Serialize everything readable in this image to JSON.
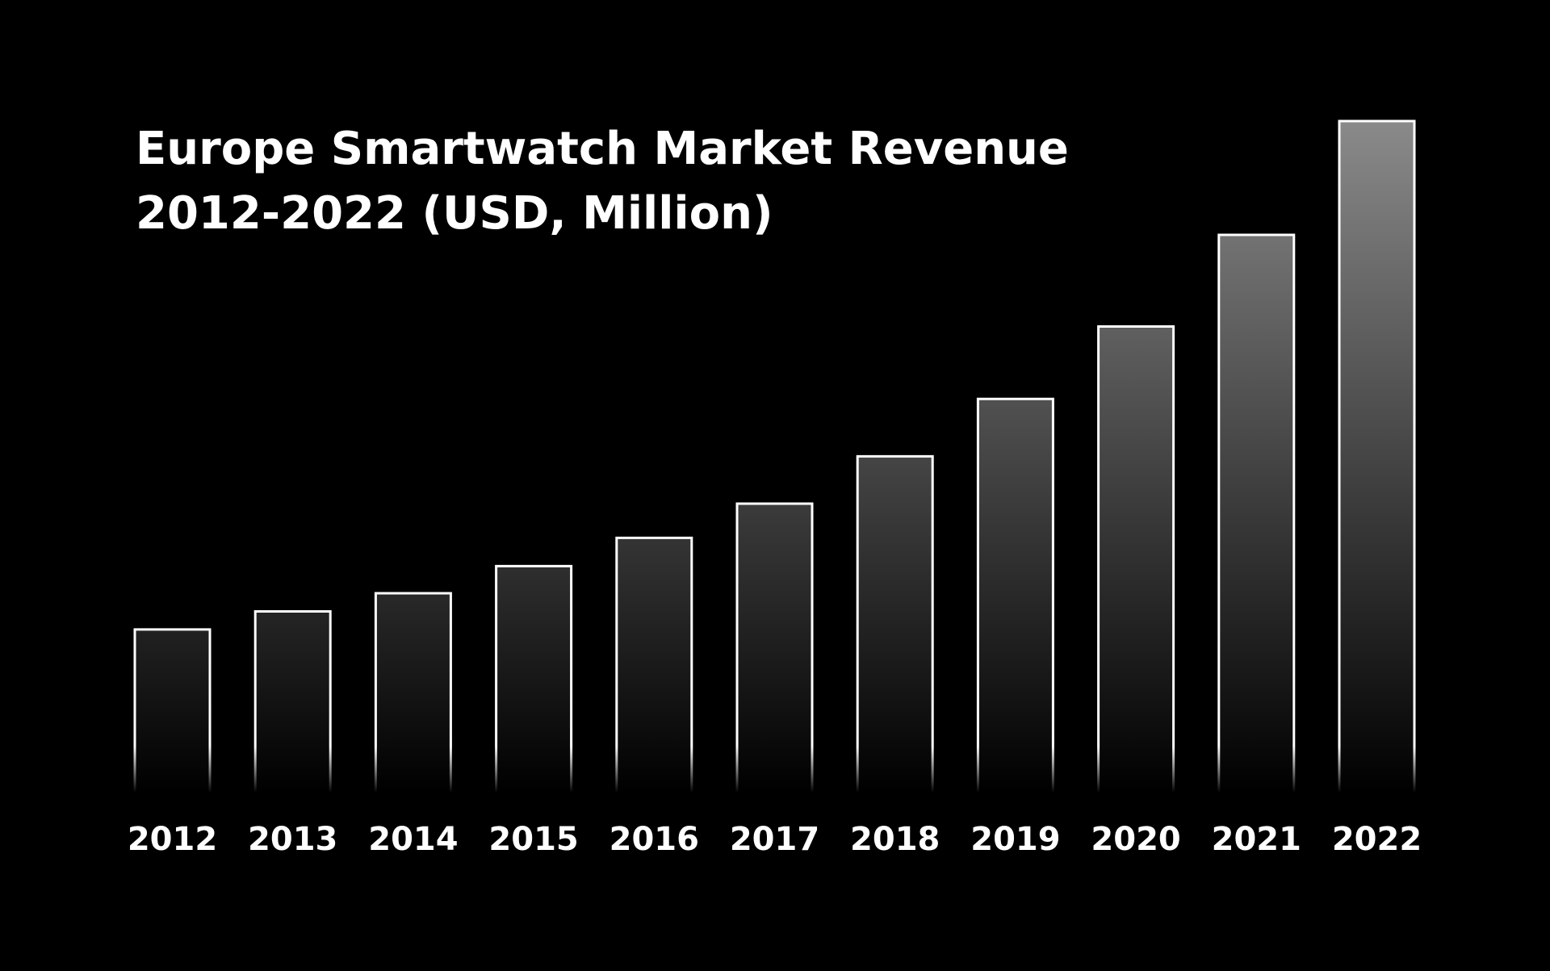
{
  "chart_data": {
    "type": "bar",
    "title_lines": [
      "Europe Smartwatch Market Revenue",
      "2012-2022 (USD, Million)"
    ],
    "xlabel": "",
    "ylabel": "",
    "categories": [
      "2012",
      "2013",
      "2014",
      "2015",
      "2016",
      "2017",
      "2018",
      "2019",
      "2020",
      "2021",
      "2022"
    ],
    "values": [
      162,
      180,
      198,
      225,
      253,
      287,
      334,
      391,
      463,
      554,
      667
    ],
    "ylim": [
      0,
      667
    ],
    "grid": false,
    "legend": "none",
    "colors": {
      "background": "#000000",
      "bar_top": "#8a8a8a",
      "bar_bottom": "#000000",
      "bar_outline": "#ffffff",
      "text": "#ffffff"
    }
  }
}
